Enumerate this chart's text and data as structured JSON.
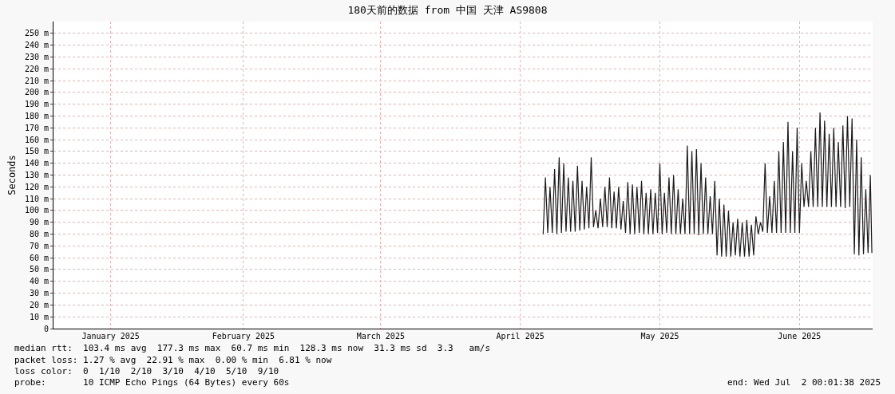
{
  "chart_data": {
    "type": "line",
    "title": "180天前的数据 from 中国 天津 AS9808",
    "ylabel": "Seconds",
    "x": [
      "2025-04-21T00:00",
      "2025-04-21T12:00",
      "2025-04-22T00:00",
      "2025-04-22T12:00",
      "2025-04-23T00:00",
      "2025-04-23T12:00",
      "2025-04-24T00:00",
      "2025-04-24T12:00",
      "2025-04-25T00:00",
      "2025-04-25T12:00",
      "2025-04-26T00:00",
      "2025-04-26T12:00",
      "2025-04-27T00:00",
      "2025-04-27T12:00",
      "2025-04-28T00:00",
      "2025-04-28T12:00",
      "2025-04-29T00:00",
      "2025-04-29T12:00",
      "2025-04-30T00:00",
      "2025-04-30T12:00",
      "2025-05-01T00:00",
      "2025-05-01T12:00",
      "2025-05-02T00:00",
      "2025-05-02T12:00",
      "2025-05-03T00:00",
      "2025-05-03T12:00",
      "2025-05-04T00:00",
      "2025-05-04T12:00",
      "2025-05-05T00:00",
      "2025-05-05T12:00",
      "2025-05-06T00:00",
      "2025-05-06T12:00",
      "2025-05-07T00:00",
      "2025-05-07T12:00",
      "2025-05-08T00:00",
      "2025-05-08T12:00",
      "2025-05-09T00:00",
      "2025-05-09T12:00",
      "2025-05-10T00:00",
      "2025-05-10T12:00",
      "2025-05-11T00:00",
      "2025-05-11T12:00",
      "2025-05-12T00:00",
      "2025-05-12T12:00",
      "2025-05-13T00:00",
      "2025-05-13T12:00",
      "2025-05-14T00:00",
      "2025-05-14T12:00",
      "2025-05-15T00:00",
      "2025-05-15T12:00",
      "2025-05-16T00:00",
      "2025-05-16T12:00",
      "2025-05-17T00:00",
      "2025-05-17T12:00",
      "2025-05-18T00:00",
      "2025-05-18T12:00",
      "2025-05-19T00:00",
      "2025-05-19T12:00",
      "2025-05-20T00:00",
      "2025-05-20T12:00",
      "2025-05-21T00:00",
      "2025-05-21T12:00",
      "2025-05-22T00:00",
      "2025-05-22T12:00",
      "2025-05-23T00:00",
      "2025-05-23T12:00",
      "2025-05-24T00:00",
      "2025-05-24T12:00",
      "2025-05-25T00:00",
      "2025-05-25T12:00",
      "2025-05-26T00:00",
      "2025-05-26T12:00",
      "2025-05-27T00:00",
      "2025-05-27T12:00",
      "2025-05-28T00:00",
      "2025-05-28T12:00",
      "2025-05-29T00:00",
      "2025-05-29T12:00",
      "2025-05-30T00:00",
      "2025-05-30T12:00",
      "2025-05-31T00:00",
      "2025-05-31T12:00",
      "2025-06-01T00:00",
      "2025-06-01T12:00",
      "2025-06-02T00:00",
      "2025-06-02T12:00",
      "2025-06-03T00:00",
      "2025-06-03T12:00",
      "2025-06-04T00:00",
      "2025-06-04T12:00",
      "2025-06-05T00:00",
      "2025-06-05T12:00",
      "2025-06-06T00:00",
      "2025-06-06T12:00",
      "2025-06-07T00:00",
      "2025-06-07T12:00",
      "2025-06-08T00:00",
      "2025-06-08T12:00",
      "2025-06-09T00:00",
      "2025-06-09T12:00",
      "2025-06-10T00:00",
      "2025-06-10T12:00",
      "2025-06-11T00:00",
      "2025-06-11T12:00",
      "2025-06-12T00:00",
      "2025-06-12T12:00",
      "2025-06-13T00:00",
      "2025-06-13T12:00",
      "2025-06-14T00:00",
      "2025-06-14T12:00",
      "2025-06-15T00:00",
      "2025-06-15T12:00",
      "2025-06-16T00:00",
      "2025-06-16T12:00",
      "2025-06-17T00:00",
      "2025-06-17T12:00",
      "2025-06-18T00:00",
      "2025-06-18T12:00",
      "2025-06-19T00:00",
      "2025-06-19T12:00",
      "2025-06-20T00:00",
      "2025-06-20T12:00",
      "2025-06-21T00:00",
      "2025-06-21T12:00",
      "2025-06-22T00:00",
      "2025-06-22T12:00",
      "2025-06-23T00:00",
      "2025-06-23T12:00",
      "2025-06-24T00:00",
      "2025-06-24T12:00",
      "2025-06-25T00:00",
      "2025-06-25T12:00",
      "2025-06-26T00:00",
      "2025-06-26T12:00",
      "2025-06-27T00:00",
      "2025-06-27T12:00",
      "2025-06-28T00:00",
      "2025-06-28T12:00",
      "2025-06-29T00:00",
      "2025-06-29T12:00",
      "2025-06-30T00:00",
      "2025-06-30T12:00",
      "2025-07-01T00:00",
      "2025-07-01T12:00",
      "2025-07-01T20:00"
    ],
    "series": [
      {
        "color": "#1a1a1a",
        "values": [
          80,
          128,
          81,
          120,
          81,
          135,
          80,
          145,
          81,
          140,
          82,
          128,
          82,
          125,
          82,
          138,
          83,
          125,
          84,
          120,
          85,
          145,
          86,
          100,
          85,
          110,
          86,
          120,
          86,
          128,
          85,
          116,
          85,
          120,
          84,
          108,
          81,
          124,
          80,
          122,
          80,
          120,
          81,
          125,
          80,
          115,
          80,
          118,
          80,
          115,
          81,
          140,
          80,
          115,
          81,
          128,
          80,
          130,
          80,
          118,
          80,
          110,
          80,
          155,
          80,
          150,
          80,
          152,
          79,
          140,
          80,
          128,
          80,
          112,
          80,
          125,
          62,
          110,
          61,
          105,
          61,
          100,
          61,
          90,
          62,
          93,
          61,
          90,
          61,
          92,
          61,
          88,
          62,
          95,
          80,
          90,
          82,
          140,
          81,
          112,
          81,
          125,
          81,
          150,
          81,
          158,
          81,
          175,
          81,
          150,
          81,
          170,
          81,
          140,
          103,
          125,
          103,
          150,
          103,
          170,
          103,
          183,
          103,
          176,
          103,
          165,
          103,
          170,
          103,
          158,
          103,
          172,
          102,
          180,
          103,
          178,
          63,
          160,
          62,
          145,
          63,
          118,
          64,
          130,
          64
        ]
      }
    ],
    "xlim": [
      "2025-01-04",
      "2025-07-02"
    ],
    "xticks": [
      {
        "value": "2025-01-16T12:00",
        "label": "January 2025"
      },
      {
        "value": "2025-02-14T12:00",
        "label": "February 2025"
      },
      {
        "value": "2025-03-16T12:00",
        "label": "March 2025"
      },
      {
        "value": "2025-04-16T00:00",
        "label": "April 2025"
      },
      {
        "value": "2025-05-16T12:00",
        "label": "May 2025"
      },
      {
        "value": "2025-06-16T00:00",
        "label": "June 2025"
      }
    ],
    "ylim": [
      0,
      260
    ],
    "yticks": [
      0,
      {
        "value": 10,
        "label": "10 m"
      },
      {
        "value": 20,
        "label": "20 m"
      },
      {
        "value": 30,
        "label": "30 m"
      },
      {
        "value": 40,
        "label": "40 m"
      },
      {
        "value": 50,
        "label": "50 m"
      },
      {
        "value": 60,
        "label": "60 m"
      },
      {
        "value": 70,
        "label": "70 m"
      },
      {
        "value": 80,
        "label": "80 m"
      },
      {
        "value": 90,
        "label": "90 m"
      },
      {
        "value": 100,
        "label": "100 m"
      },
      {
        "value": 110,
        "label": "110 m"
      },
      {
        "value": 120,
        "label": "120 m"
      },
      {
        "value": 130,
        "label": "130 m"
      },
      {
        "value": 140,
        "label": "140 m"
      },
      {
        "value": 150,
        "label": "150 m"
      },
      {
        "value": 160,
        "label": "160 m"
      },
      {
        "value": 170,
        "label": "170 m"
      },
      {
        "value": 180,
        "label": "180 m"
      },
      {
        "value": 190,
        "label": "190 m"
      },
      {
        "value": 200,
        "label": "200 m"
      },
      {
        "value": 210,
        "label": "210 m"
      },
      {
        "value": 220,
        "label": "220 m"
      },
      {
        "value": 230,
        "label": "230 m"
      },
      {
        "value": 240,
        "label": "240 m"
      },
      {
        "value": 250,
        "label": "250 m"
      }
    ],
    "grid": true,
    "annotations": [
      "median rtt:  103.4 ms avg  177.3 ms max  60.7 ms min  128.3 ms now  31.3 ms sd  3.3   am/s",
      "packet loss: 1.27 % avg  22.91 % max  0.00 % min  6.81 % now",
      "loss color:  0  1/10  2/10  3/10  4/10  5/10  9/10",
      "probe:       10 ICMP Echo Pings (64 Bytes) every 60s",
      "end: Wed Jul  2 00:01:38 2025"
    ]
  }
}
